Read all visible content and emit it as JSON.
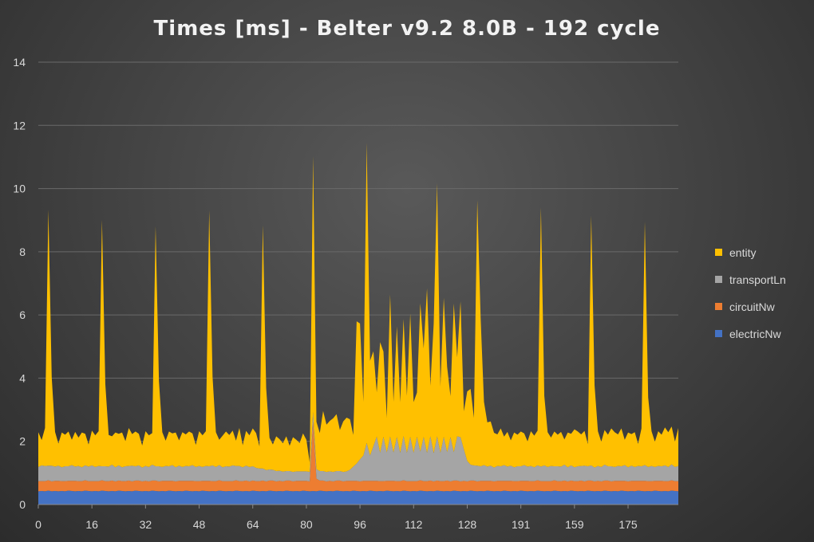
{
  "chart_data": {
    "type": "area",
    "stacked": true,
    "title": "Times [ms] - Belter v9.2 8.0B - 192 cycle",
    "xlabel": "",
    "ylabel": "",
    "ylim": [
      0,
      14
    ],
    "yticks": [
      0,
      2,
      4,
      6,
      8,
      10,
      12,
      14
    ],
    "grid": true,
    "legend_position": "right",
    "x_tick_labels": [
      {
        "index": 0,
        "label": "0"
      },
      {
        "index": 16,
        "label": "16"
      },
      {
        "index": 32,
        "label": "32"
      },
      {
        "index": 48,
        "label": "48"
      },
      {
        "index": 64,
        "label": "64"
      },
      {
        "index": 80,
        "label": "80"
      },
      {
        "index": 96,
        "label": "96"
      },
      {
        "index": 112,
        "label": "112"
      },
      {
        "index": 128,
        "label": "128"
      },
      {
        "index": 144,
        "label": "191"
      },
      {
        "index": 160,
        "label": "159"
      },
      {
        "index": 176,
        "label": "175"
      }
    ],
    "x_count": 192,
    "series": [
      {
        "name": "electricNw",
        "color": "#4472c4",
        "values": [
          0.42,
          0.43,
          0.42,
          0.44,
          0.42,
          0.43,
          0.42,
          0.43,
          0.42,
          0.44,
          0.43,
          0.42,
          0.43,
          0.42,
          0.44,
          0.43,
          0.42,
          0.43,
          0.42,
          0.44,
          0.43,
          0.42,
          0.43,
          0.42,
          0.44,
          0.43,
          0.42,
          0.43,
          0.42,
          0.44,
          0.43,
          0.42,
          0.43,
          0.42,
          0.44,
          0.43,
          0.42,
          0.43,
          0.42,
          0.44,
          0.43,
          0.42,
          0.43,
          0.42,
          0.44,
          0.43,
          0.42,
          0.43,
          0.42,
          0.44,
          0.43,
          0.42,
          0.43,
          0.42,
          0.44,
          0.43,
          0.42,
          0.43,
          0.42,
          0.44,
          0.43,
          0.42,
          0.43,
          0.42,
          0.44,
          0.43,
          0.42,
          0.43,
          0.42,
          0.44,
          0.43,
          0.42,
          0.43,
          0.42,
          0.44,
          0.43,
          0.42,
          0.43,
          0.42,
          0.44,
          0.43,
          0.42,
          0.43,
          0.42,
          0.44,
          0.43,
          0.42,
          0.43,
          0.42,
          0.44,
          0.43,
          0.42,
          0.43,
          0.42,
          0.44,
          0.43,
          0.42,
          0.43,
          0.42,
          0.44,
          0.43,
          0.42,
          0.43,
          0.42,
          0.44,
          0.43,
          0.42,
          0.43,
          0.42,
          0.44,
          0.43,
          0.42,
          0.43,
          0.42,
          0.44,
          0.43,
          0.42,
          0.43,
          0.42,
          0.44,
          0.43,
          0.42,
          0.43,
          0.42,
          0.44,
          0.43,
          0.42,
          0.43,
          0.42,
          0.44,
          0.43,
          0.42,
          0.43,
          0.42,
          0.44,
          0.43,
          0.42,
          0.43,
          0.42,
          0.44,
          0.43,
          0.42,
          0.43,
          0.42,
          0.44,
          0.43,
          0.42,
          0.43,
          0.42,
          0.44,
          0.43,
          0.42,
          0.43,
          0.42,
          0.44,
          0.43,
          0.42,
          0.43,
          0.42,
          0.44,
          0.43,
          0.42,
          0.43,
          0.42,
          0.44,
          0.43,
          0.42,
          0.43,
          0.42,
          0.44,
          0.43,
          0.42,
          0.43,
          0.42,
          0.44,
          0.43,
          0.42,
          0.43,
          0.42,
          0.44,
          0.43,
          0.42,
          0.43,
          0.42,
          0.44,
          0.43,
          0.42,
          0.43,
          0.42,
          0.44,
          0.43,
          0.42,
          0.43,
          0.42,
          0.44,
          0.43
        ]
      },
      {
        "name": "circuitNw",
        "color": "#ed7d31",
        "values": [
          0.32,
          0.31,
          0.32,
          0.33,
          0.31,
          0.32,
          0.33,
          0.31,
          0.32,
          0.31,
          0.32,
          0.33,
          0.31,
          0.32,
          0.33,
          0.31,
          0.32,
          0.31,
          0.32,
          0.33,
          0.31,
          0.32,
          0.33,
          0.31,
          0.32,
          0.31,
          0.32,
          0.33,
          0.31,
          0.32,
          0.33,
          0.31,
          0.32,
          0.31,
          0.32,
          0.33,
          0.31,
          0.32,
          0.33,
          0.31,
          0.32,
          0.31,
          0.32,
          0.33,
          0.31,
          0.32,
          0.33,
          0.31,
          0.32,
          0.31,
          0.32,
          0.33,
          0.31,
          0.32,
          0.33,
          0.31,
          0.32,
          0.31,
          0.32,
          0.33,
          0.31,
          0.32,
          0.33,
          0.31,
          0.32,
          0.31,
          0.32,
          0.33,
          0.31,
          0.32,
          0.33,
          0.31,
          0.32,
          0.31,
          0.32,
          0.33,
          0.31,
          0.32,
          0.33,
          0.31,
          0.32,
          0.31,
          2.2,
          0.4,
          0.32,
          0.33,
          0.31,
          0.32,
          0.31,
          0.32,
          0.33,
          0.31,
          0.32,
          0.33,
          0.31,
          0.32,
          0.31,
          0.32,
          0.33,
          0.31,
          0.32,
          0.33,
          0.31,
          0.32,
          0.31,
          0.32,
          0.33,
          0.31,
          0.32,
          0.33,
          0.31,
          0.32,
          0.31,
          0.32,
          0.33,
          0.31,
          0.32,
          0.33,
          0.31,
          0.32,
          0.31,
          0.32,
          0.33,
          0.31,
          0.32,
          0.33,
          0.31,
          0.32,
          0.31,
          0.32,
          0.33,
          0.31,
          0.32,
          0.33,
          0.31,
          0.32,
          0.31,
          0.32,
          0.33,
          0.31,
          0.32,
          0.33,
          0.31,
          0.32,
          0.31,
          0.32,
          0.33,
          0.31,
          0.32,
          0.33,
          0.31,
          0.32,
          0.31,
          0.32,
          0.33,
          0.31,
          0.32,
          0.33,
          0.31,
          0.32,
          0.31,
          0.32,
          0.33,
          0.31,
          0.32,
          0.33,
          0.31,
          0.32,
          0.31,
          0.32,
          0.33,
          0.31,
          0.32,
          0.33,
          0.31,
          0.32,
          0.31,
          0.32,
          0.33,
          0.31,
          0.32,
          0.33,
          0.31,
          0.32,
          0.31,
          0.32,
          0.33,
          0.31,
          0.32,
          0.33,
          0.31,
          0.32,
          0.31,
          0.32
        ]
      },
      {
        "name": "transportLn",
        "color": "#a5a5a5",
        "values": [
          0.45,
          0.5,
          0.48,
          0.46,
          0.5,
          0.45,
          0.48,
          0.44,
          0.47,
          0.46,
          0.5,
          0.45,
          0.48,
          0.44,
          0.47,
          0.46,
          0.5,
          0.45,
          0.48,
          0.44,
          0.47,
          0.46,
          0.5,
          0.45,
          0.48,
          0.44,
          0.47,
          0.46,
          0.5,
          0.45,
          0.48,
          0.44,
          0.47,
          0.46,
          0.5,
          0.45,
          0.48,
          0.44,
          0.47,
          0.46,
          0.5,
          0.45,
          0.48,
          0.44,
          0.47,
          0.46,
          0.5,
          0.45,
          0.48,
          0.44,
          0.47,
          0.46,
          0.5,
          0.45,
          0.48,
          0.44,
          0.47,
          0.46,
          0.5,
          0.45,
          0.48,
          0.44,
          0.47,
          0.46,
          0.45,
          0.42,
          0.4,
          0.38,
          0.36,
          0.35,
          0.34,
          0.33,
          0.32,
          0.31,
          0.3,
          0.3,
          0.3,
          0.3,
          0.3,
          0.3,
          0.3,
          0.3,
          0.3,
          0.3,
          0.3,
          0.3,
          0.3,
          0.3,
          0.3,
          0.3,
          0.3,
          0.3,
          0.3,
          0.35,
          0.45,
          0.55,
          0.7,
          0.8,
          1.2,
          0.8,
          1.1,
          1.4,
          0.9,
          1.4,
          0.9,
          1.4,
          0.9,
          1.4,
          0.9,
          1.4,
          0.9,
          1.4,
          0.9,
          1.4,
          0.9,
          1.4,
          0.9,
          1.4,
          0.9,
          1.4,
          0.9,
          1.4,
          0.9,
          1.4,
          0.9,
          1.4,
          1.4,
          1.0,
          0.65,
          0.5,
          0.48,
          0.5,
          0.46,
          0.5,
          0.45,
          0.48,
          0.44,
          0.47,
          0.46,
          0.5,
          0.45,
          0.48,
          0.44,
          0.47,
          0.46,
          0.5,
          0.45,
          0.48,
          0.44,
          0.47,
          0.46,
          0.5,
          0.45,
          0.48,
          0.44,
          0.47,
          0.46,
          0.5,
          0.45,
          0.48,
          0.44,
          0.47,
          0.46,
          0.5,
          0.45,
          0.48,
          0.44,
          0.47,
          0.46,
          0.5,
          0.45,
          0.48,
          0.44,
          0.47,
          0.46,
          0.5,
          0.45,
          0.48,
          0.44,
          0.47,
          0.46,
          0.5,
          0.45,
          0.48,
          0.44,
          0.47,
          0.46,
          0.5,
          0.45,
          0.5,
          0.45,
          0.48,
          0.47
        ]
      },
      {
        "name": "entity",
        "color": "#ffc000",
        "values": [
          1.1,
          0.8,
          1.2,
          8.1,
          2.8,
          1.1,
          0.7,
          1.1,
          1.0,
          1.1,
          0.8,
          1.1,
          0.9,
          1.1,
          1.0,
          0.7,
          1.1,
          1.0,
          1.1,
          7.8,
          2.6,
          1.0,
          0.9,
          1.1,
          1.0,
          1.1,
          0.8,
          1.2,
          1.0,
          1.1,
          1.0,
          0.7,
          1.1,
          1.0,
          1.0,
          7.6,
          2.7,
          1.1,
          0.8,
          1.1,
          1.0,
          1.1,
          0.8,
          1.1,
          1.0,
          1.1,
          1.0,
          0.7,
          1.1,
          1.0,
          1.1,
          8.1,
          2.8,
          1.1,
          0.8,
          1.0,
          1.1,
          1.0,
          1.1,
          0.8,
          1.2,
          0.7,
          1.1,
          1.0,
          1.2,
          1.1,
          0.7,
          7.7,
          2.6,
          1.0,
          0.8,
          1.1,
          1.0,
          0.9,
          1.1,
          0.8,
          1.1,
          1.0,
          0.9,
          1.2,
          1.0,
          0.3,
          8.1,
          1.5,
          1.2,
          1.9,
          1.5,
          1.6,
          1.7,
          1.8,
          1.3,
          1.6,
          1.7,
          1.6,
          1.0,
          4.5,
          4.3,
          1.7,
          9.5,
          3.0,
          3.0,
          1.4,
          3.5,
          2.7,
          1.1,
          4.5,
          1.6,
          3.5,
          1.6,
          3.7,
          1.8,
          3.9,
          1.6,
          1.4,
          4.7,
          2.8,
          5.2,
          1.6,
          4.1,
          8.0,
          2.1,
          4.4,
          2.7,
          1.3,
          4.7,
          2.5,
          4.3,
          1.2,
          2.2,
          2.4,
          1.5,
          8.4,
          4.7,
          2.0,
          1.4,
          1.4,
          1.1,
          1.0,
          1.2,
          0.9,
          1.1,
          0.8,
          1.1,
          1.0,
          1.1,
          1.0,
          0.8,
          1.1,
          1.0,
          1.1,
          8.2,
          2.2,
          1.1,
          0.9,
          1.1,
          1.0,
          1.1,
          0.8,
          1.1,
          1.0,
          1.2,
          1.1,
          1.0,
          1.1,
          0.7,
          7.9,
          2.6,
          1.1,
          0.8,
          1.1,
          1.0,
          1.2,
          1.1,
          1.0,
          1.2,
          0.8,
          1.1,
          1.0,
          1.1,
          0.7,
          1.2,
          7.7,
          2.2,
          1.1,
          0.8,
          1.1,
          1.0,
          1.2,
          1.1,
          1.2,
          0.8,
          1.2,
          0.9
        ]
      }
    ]
  }
}
